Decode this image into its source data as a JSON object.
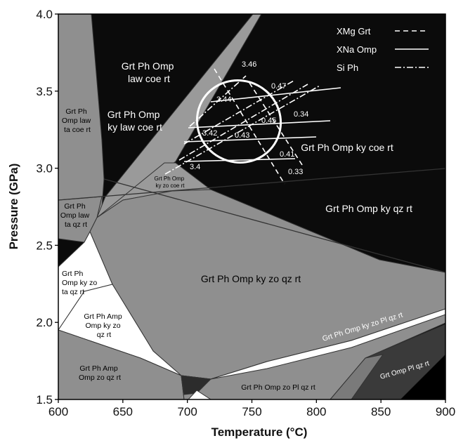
{
  "chart_data": {
    "type": "phase-diagram",
    "xlabel": "Temperature (°C)",
    "ylabel": "Pressure (GPa)",
    "xlim": [
      600,
      900
    ],
    "ylim": [
      1.5,
      4.0
    ],
    "x_ticks": [
      "600",
      "650",
      "700",
      "750",
      "800",
      "850",
      "900"
    ],
    "y_ticks": [
      "1.5",
      "2.0",
      "2.5",
      "3.0",
      "3.5",
      "4.0"
    ],
    "legend": {
      "position": "top-right",
      "entries": [
        {
          "label": "XMg Grt",
          "style": "dashed"
        },
        {
          "label": "XNa Omp",
          "style": "solid"
        },
        {
          "label": "Si Ph",
          "style": "dash-dot"
        }
      ]
    },
    "fields": [
      {
        "lines": [
          "Grt Ph Omp",
          "law coe rt"
        ]
      },
      {
        "lines": [
          "Grt Ph Omp",
          "ky law coe rt"
        ]
      },
      {
        "lines": [
          "Grt Ph",
          "Omp law",
          "ta coe rt"
        ]
      },
      {
        "lines": [
          "Grt Ph Omp ky coe rt"
        ]
      },
      {
        "lines": [
          "Grt Ph Omp",
          "ky zo coe rt"
        ]
      },
      {
        "lines": [
          "Grt Ph",
          "Omp law",
          "ta qz rt"
        ]
      },
      {
        "lines": [
          "Grt Ph Omp ky qz rt"
        ]
      },
      {
        "lines": [
          "Grt Ph Omp ky zo qz rt"
        ]
      },
      {
        "lines": [
          "Grt Ph",
          "Omp ky zo",
          "ta qz rt"
        ]
      },
      {
        "lines": [
          "Grt Ph Amp",
          "Omp ky zo",
          "qz rt"
        ]
      },
      {
        "lines": [
          "Grt Ph Omp ky zo Pl qz rt"
        ]
      },
      {
        "lines": [
          "Grt Omp Pl qz rt"
        ]
      },
      {
        "lines": [
          "Grt Ph Amp",
          "Omp zo qz rt"
        ]
      },
      {
        "lines": [
          "Grt Ph Omp zo Pl qz rt"
        ]
      }
    ],
    "isopleth_labels": [
      {
        "value": "3.46",
        "set": "Si Ph"
      },
      {
        "value": "3.44",
        "set": "Si Ph"
      },
      {
        "value": "3.42",
        "set": "Si Ph"
      },
      {
        "value": "3.4",
        "set": "Si Ph"
      },
      {
        "value": "0.47",
        "set": "XNa Omp"
      },
      {
        "value": "0.45",
        "set": "XNa Omp"
      },
      {
        "value": "0.43",
        "set": "XNa Omp"
      },
      {
        "value": "0.41",
        "set": "XNa Omp"
      },
      {
        "value": "0.34",
        "set": "XMg Grt"
      },
      {
        "value": "0.33",
        "set": "XMg Grt"
      }
    ],
    "pt_ellipse": {
      "center_T": 755,
      "center_P": 3.24,
      "label": ""
    }
  }
}
